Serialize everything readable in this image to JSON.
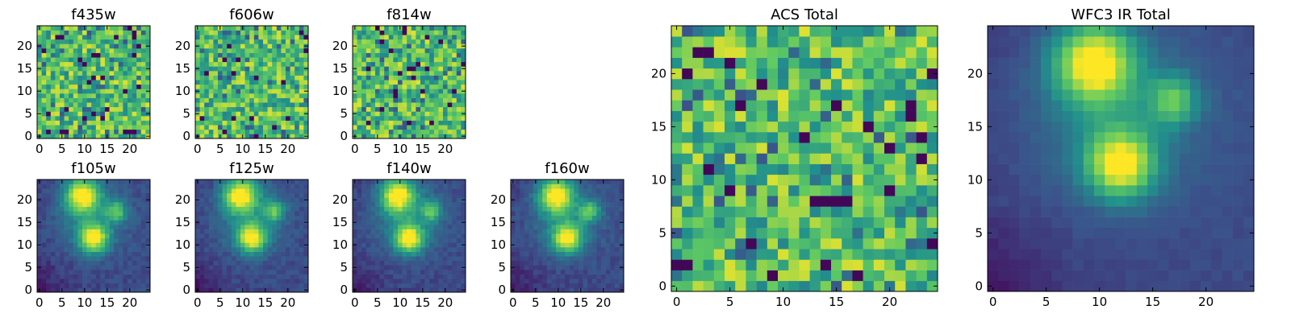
{
  "colormap": [
    "#440154",
    "#3b528b",
    "#21918c",
    "#5ec962",
    "#fde725"
  ],
  "chart_data": [
    {
      "type": "heatmap",
      "title": "f435w",
      "pattern": "noise",
      "xlim": [
        -0.5,
        24.5
      ],
      "ylim": [
        -0.5,
        24.5
      ],
      "xticks": [
        0,
        5,
        10,
        15,
        20
      ],
      "yticks": [
        0,
        5,
        10,
        15,
        20
      ],
      "grid": false
    },
    {
      "type": "heatmap",
      "title": "f606w",
      "pattern": "noise",
      "xlim": [
        -0.5,
        24.5
      ],
      "ylim": [
        -0.5,
        24.5
      ],
      "xticks": [
        0,
        5,
        10,
        15,
        20
      ],
      "yticks": [
        0,
        5,
        10,
        15,
        20
      ],
      "grid": false
    },
    {
      "type": "heatmap",
      "title": "f814w",
      "pattern": "noise",
      "xlim": [
        -0.5,
        24.5
      ],
      "ylim": [
        -0.5,
        24.5
      ],
      "xticks": [
        0,
        5,
        10,
        15,
        20
      ],
      "yticks": [
        0,
        5,
        10,
        15,
        20
      ],
      "grid": false
    },
    {
      "type": "heatmap",
      "title": "f105w",
      "pattern": "sources",
      "xlim": [
        -0.5,
        24.5
      ],
      "ylim": [
        -0.5,
        24.5
      ],
      "xticks": [
        0,
        5,
        10,
        15,
        20
      ],
      "yticks": [
        0,
        5,
        10,
        15,
        20
      ],
      "grid": false
    },
    {
      "type": "heatmap",
      "title": "f125w",
      "pattern": "sources",
      "xlim": [
        -0.5,
        24.5
      ],
      "ylim": [
        -0.5,
        24.5
      ],
      "xticks": [
        0,
        5,
        10,
        15,
        20
      ],
      "yticks": [
        0,
        5,
        10,
        15,
        20
      ],
      "grid": false
    },
    {
      "type": "heatmap",
      "title": "f140w",
      "pattern": "sources",
      "xlim": [
        -0.5,
        24.5
      ],
      "ylim": [
        -0.5,
        24.5
      ],
      "xticks": [
        0,
        5,
        10,
        15,
        20
      ],
      "yticks": [
        0,
        5,
        10,
        15,
        20
      ],
      "grid": false
    },
    {
      "type": "heatmap",
      "title": "f160w",
      "pattern": "sources",
      "xlim": [
        -0.5,
        24.5
      ],
      "ylim": [
        -0.5,
        24.5
      ],
      "xticks": [
        0,
        5,
        10,
        15,
        20
      ],
      "yticks": [
        0,
        5,
        10,
        15,
        20
      ],
      "grid": false
    },
    {
      "type": "heatmap",
      "title": "ACS Total",
      "pattern": "noise",
      "xlim": [
        -0.5,
        24.5
      ],
      "ylim": [
        -0.5,
        24.5
      ],
      "xticks": [
        0,
        5,
        10,
        15,
        20
      ],
      "yticks": [
        0,
        5,
        10,
        15,
        20
      ],
      "grid": false
    },
    {
      "type": "heatmap",
      "title": "WFC3 IR Total",
      "pattern": "sources",
      "xlim": [
        -0.5,
        24.5
      ],
      "ylim": [
        -0.5,
        24.5
      ],
      "xticks": [
        0,
        5,
        10,
        15,
        20
      ],
      "yticks": [
        0,
        5,
        10,
        15,
        20
      ],
      "grid": false,
      "sources": [
        {
          "x": 9.5,
          "y": 21.0,
          "peak": 1.0,
          "sigma": 2.6
        },
        {
          "x": 12.0,
          "y": 11.5,
          "peak": 0.95,
          "sigma": 2.2
        },
        {
          "x": 17.0,
          "y": 17.5,
          "peak": 0.55,
          "sigma": 1.6
        }
      ]
    }
  ]
}
